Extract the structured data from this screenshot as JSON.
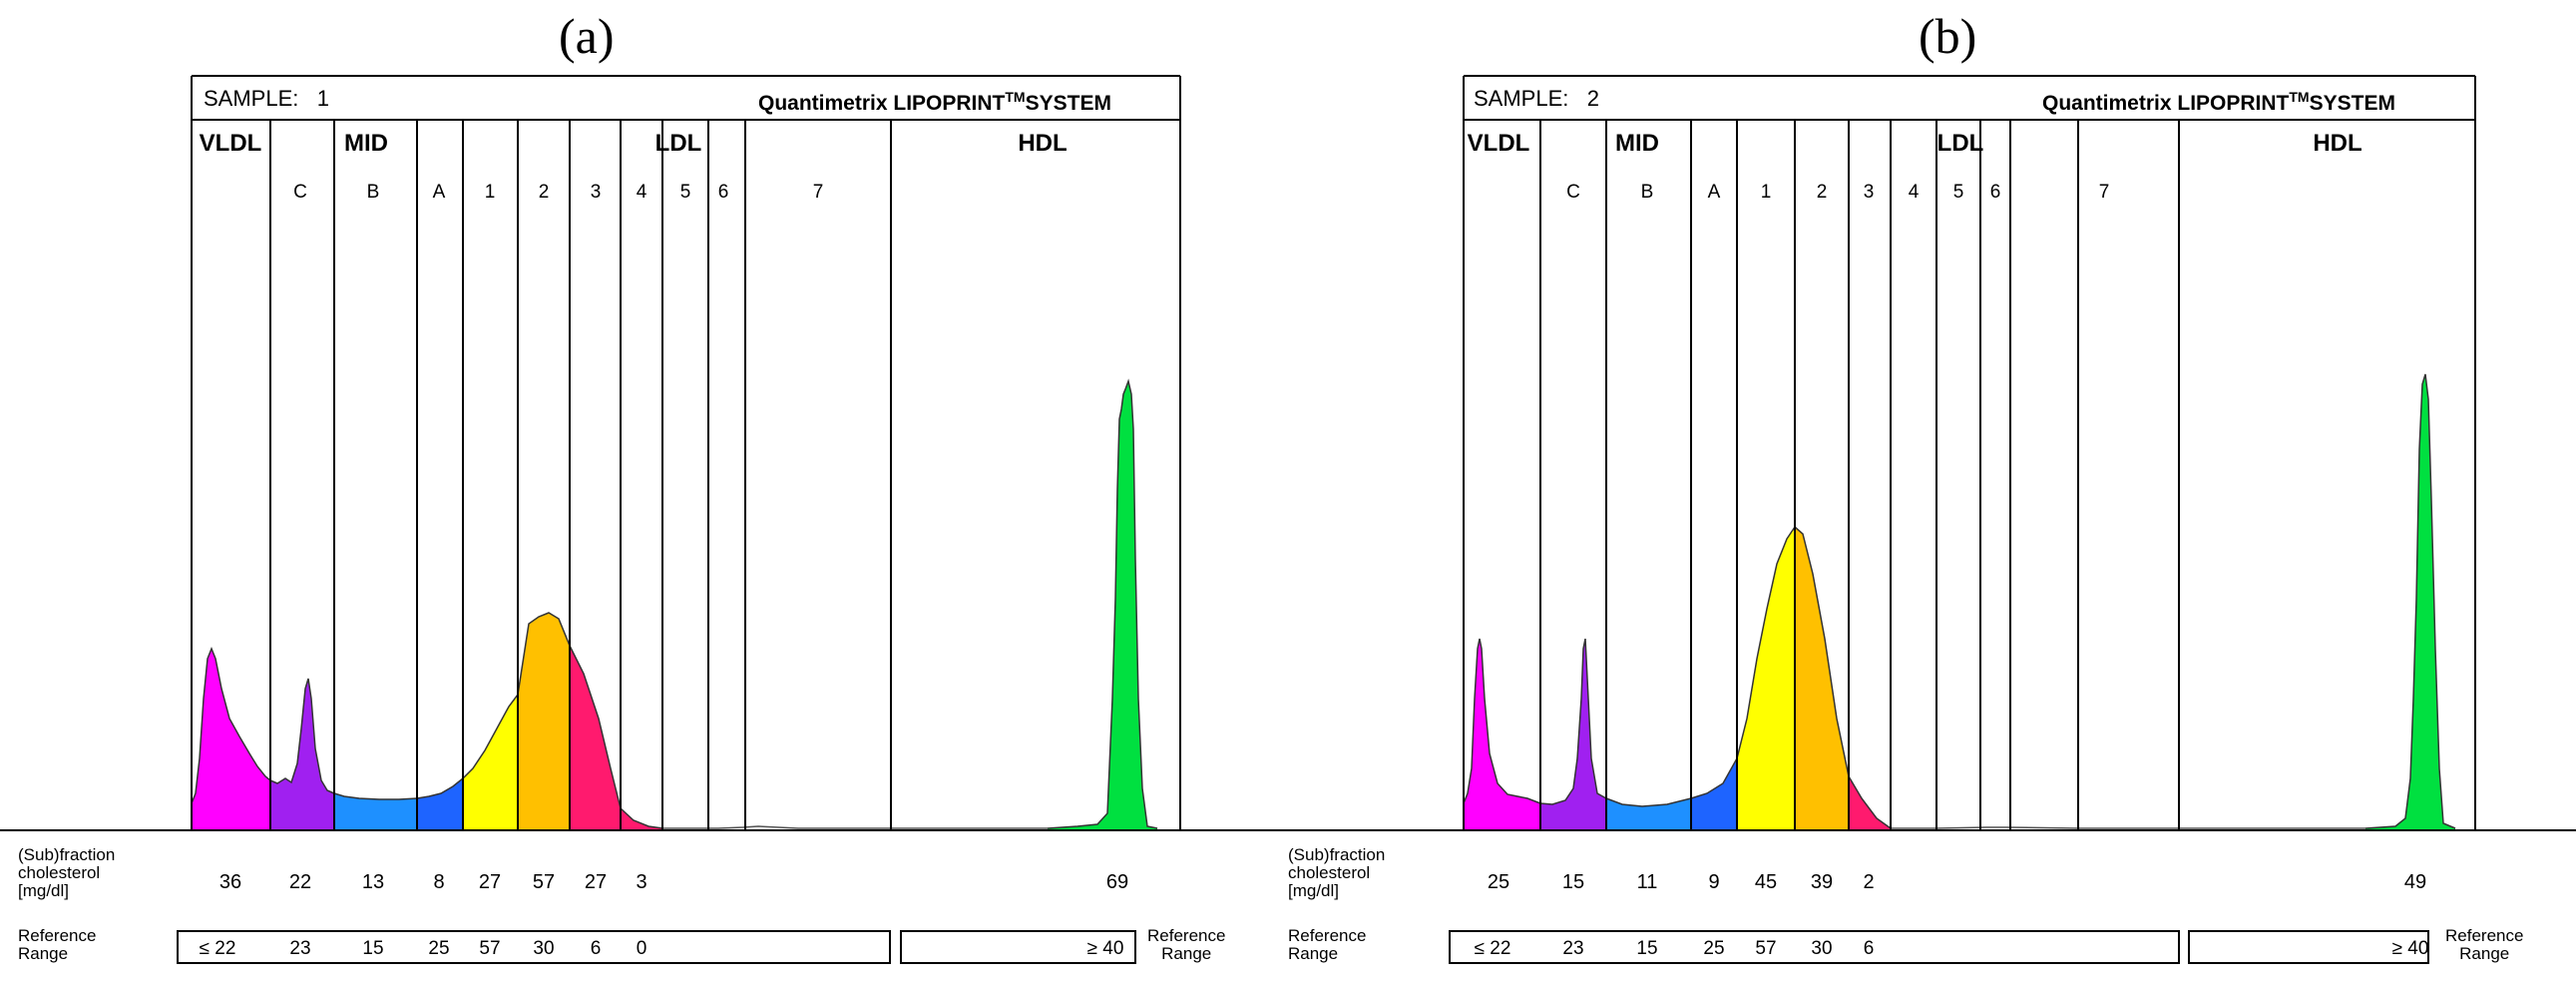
{
  "chart_data": [
    {
      "type": "area",
      "panel_label": "(a)",
      "sample_label": "SAMPLE:",
      "sample_number": "1",
      "brand_prefix": "Quantimetrix LIPOPRINT",
      "brand_tm": "TM",
      "brand_suffix": "SYSTEM",
      "groups": [
        "VLDL",
        "MID",
        "LDL",
        "HDL"
      ],
      "subfractions": [
        "C",
        "B",
        "A",
        "1",
        "2",
        "3",
        "4",
        "5",
        "6",
        "7"
      ],
      "row_label_lines": [
        "(Sub)fraction",
        "cholesterol",
        "[mg/dl]"
      ],
      "ref_label_lines": [
        "Reference",
        "Range"
      ],
      "fractions": [
        "VLDL",
        "C",
        "B",
        "A",
        "1",
        "2",
        "3",
        "4",
        "HDL"
      ],
      "cholesterol_mg_dl": [
        "36",
        "22",
        "13",
        "8",
        "27",
        "57",
        "27",
        "3",
        "69"
      ],
      "reference_ranges": [
        "≤ 22",
        "23",
        "15",
        "25",
        "57",
        "30",
        "6",
        "0"
      ],
      "hdl_reference": "≥ 40",
      "colors": {
        "VLDL": "#ff00ff",
        "C": "#a020f0",
        "B": "#1e90ff",
        "A": "#1e64ff",
        "1": "#ffff00",
        "2": "#ffc000",
        "3": "#ff1a6e",
        "4": "#ff1a6e",
        "HDL": "#00e040"
      }
    },
    {
      "type": "area",
      "panel_label": "(b)",
      "sample_label": "SAMPLE:",
      "sample_number": "2",
      "brand_prefix": "Quantimetrix LIPOPRINT",
      "brand_tm": "TM",
      "brand_suffix": "SYSTEM",
      "groups": [
        "VLDL",
        "MID",
        "LDL",
        "HDL"
      ],
      "subfractions": [
        "C",
        "B",
        "A",
        "1",
        "2",
        "3",
        "4",
        "5",
        "6",
        "7"
      ],
      "row_label_lines": [
        "(Sub)fraction",
        "cholesterol",
        "[mg/dl]"
      ],
      "ref_label_lines": [
        "Reference",
        "Range"
      ],
      "fractions": [
        "VLDL",
        "C",
        "B",
        "A",
        "1",
        "2",
        "3",
        "HDL"
      ],
      "cholesterol_mg_dl": [
        "25",
        "15",
        "11",
        "9",
        "45",
        "39",
        "2",
        "49"
      ],
      "reference_ranges": [
        "≤ 22",
        "23",
        "15",
        "25",
        "57",
        "30",
        "6"
      ],
      "hdl_reference": "≥ 40",
      "colors": {
        "VLDL": "#ff00ff",
        "C": "#a020f0",
        "B": "#1e90ff",
        "A": "#1e64ff",
        "1": "#ffff00",
        "2": "#ffc000",
        "3": "#ff1a6e",
        "HDL": "#00e040"
      }
    }
  ]
}
